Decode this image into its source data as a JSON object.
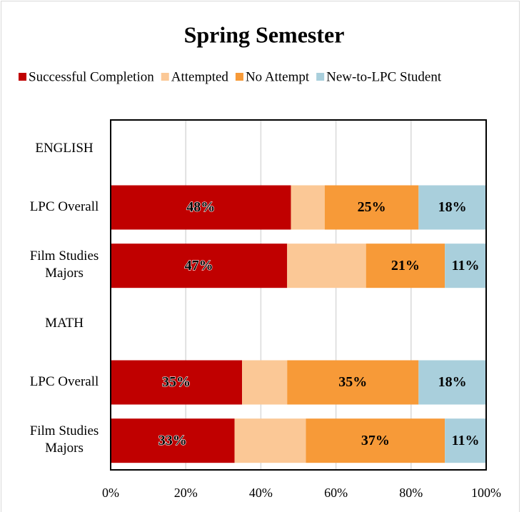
{
  "chart_data": {
    "type": "stacked_barh",
    "title": "Spring Semester",
    "categories": [
      "ENGLISH",
      "LPC Overall",
      "Film Studies Majors",
      "MATH",
      "LPC Overall",
      "Film Studies Majors"
    ],
    "series": [
      {
        "name": "Successful Completion",
        "color": "#c00000",
        "values": [
          null,
          48,
          47,
          null,
          35,
          33
        ],
        "value_labels": [
          null,
          "48%",
          "47%",
          null,
          "35%",
          "33%"
        ]
      },
      {
        "name": "Attempted",
        "color": "#fbc896",
        "values": [
          null,
          9,
          21,
          null,
          12,
          19
        ]
      },
      {
        "name": "No Attempt",
        "color": "#f79a38",
        "values": [
          null,
          25,
          21,
          null,
          35,
          37
        ],
        "value_labels": [
          null,
          "25%",
          "21%",
          null,
          "35%",
          "37%"
        ]
      },
      {
        "name": "New-to-LPC Student",
        "color": "#a9cfdc",
        "values": [
          null,
          18,
          11,
          null,
          18,
          11
        ],
        "value_labels": [
          null,
          "18%",
          "11%",
          null,
          "18%",
          "11%"
        ]
      }
    ],
    "xlim": [
      0,
      100
    ],
    "xticks": [
      {
        "value": 0,
        "label": "0%"
      },
      {
        "value": 20,
        "label": "20%"
      },
      {
        "value": 40,
        "label": "40%"
      },
      {
        "value": 60,
        "label": "60%"
      },
      {
        "value": 80,
        "label": "80%"
      },
      {
        "value": 100,
        "label": "100%"
      }
    ],
    "grid": true,
    "legend": "top"
  }
}
